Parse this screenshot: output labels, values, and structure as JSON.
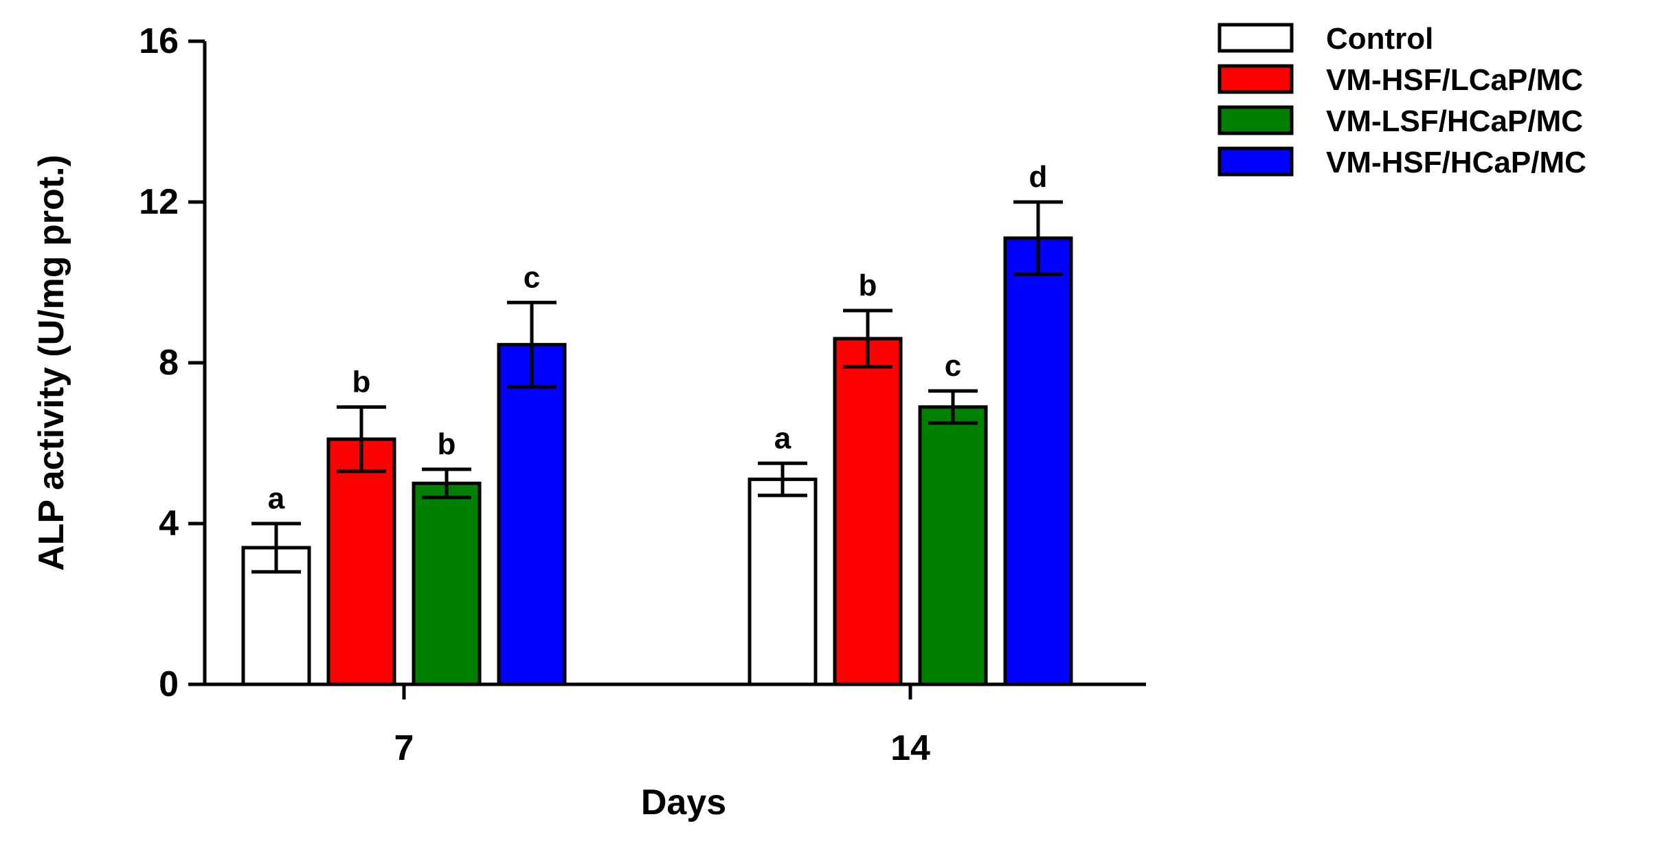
{
  "chart_data": {
    "type": "bar",
    "title": "",
    "xlabel": "Days",
    "ylabel": "ALP activity (U/mg prot.)",
    "ylim": [
      0,
      16
    ],
    "yticks": [
      "0",
      "4",
      "8",
      "12",
      "16"
    ],
    "categories": [
      "7",
      "14"
    ],
    "legend_position": "top-right",
    "grid": false,
    "series": [
      {
        "name": "Control",
        "color": "#ffffff",
        "values": [
          3.4,
          5.1
        ],
        "errors": [
          0.6,
          0.4
        ],
        "significance": [
          "a",
          "a"
        ]
      },
      {
        "name": "VM-HSF/LCaP/MC",
        "color": "#ff0000",
        "values": [
          6.1,
          8.6
        ],
        "errors": [
          0.8,
          0.7
        ],
        "significance": [
          "b",
          "b"
        ]
      },
      {
        "name": "VM-LSF/HCaP/MC",
        "color": "#008000",
        "values": [
          5.0,
          6.9
        ],
        "errors": [
          0.35,
          0.4
        ],
        "significance": [
          "b",
          "c"
        ]
      },
      {
        "name": "VM-HSF/HCaP/MC",
        "color": "#0000ff",
        "values": [
          8.45,
          11.1
        ],
        "errors": [
          1.05,
          0.9
        ],
        "significance": [
          "c",
          "d"
        ]
      }
    ]
  }
}
